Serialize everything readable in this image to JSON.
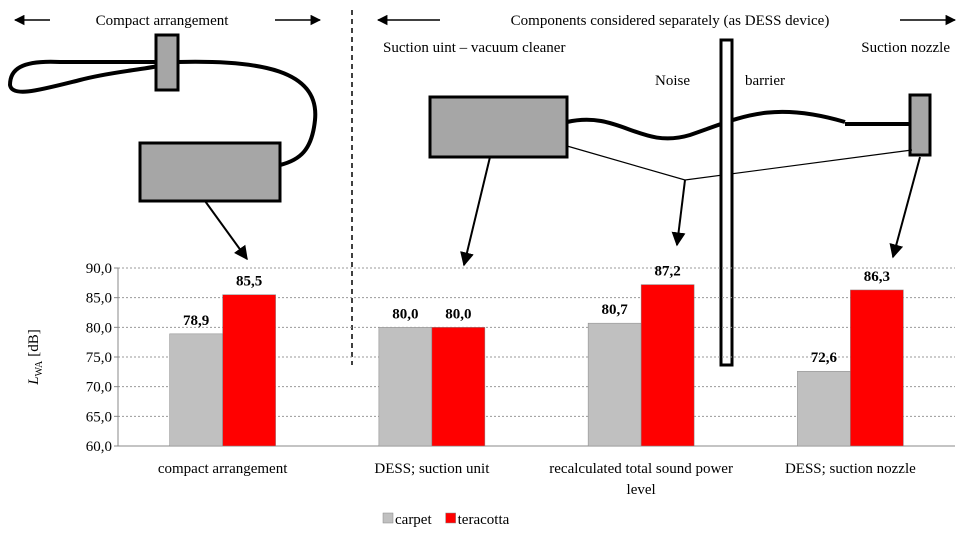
{
  "chart_data": {
    "type": "bar",
    "annotations": {
      "compact": "Compact arrangement",
      "separate": "Components considered separately (as DESS device)",
      "suction_unit": "Suction uint – vacuum cleaner",
      "suction_nozzle": "Suction nozzle",
      "noise": "Noise",
      "barrier": "barrier"
    },
    "y_label": {
      "symbol": "L",
      "subscript": "WA",
      "unit": "[dB]"
    },
    "categories": [
      "compact arrangement",
      "DESS; suction unit",
      "recalculated total sound power level",
      "DESS; suction nozzle"
    ],
    "series": [
      {
        "name": "carpet",
        "color": "#c0c0c0",
        "values": [
          78.9,
          80.0,
          80.7,
          72.6
        ],
        "value_labels": [
          "78,9",
          "80,0",
          "80,7",
          "72,6"
        ]
      },
      {
        "name": "teracotta",
        "color": "#ff0000",
        "values": [
          85.5,
          80.0,
          87.2,
          86.3
        ],
        "value_labels": [
          "85,5",
          "80,0",
          "87,2",
          "86,3"
        ]
      }
    ],
    "ylim": [
      60,
      90
    ],
    "yticks": [
      {
        "value": 60,
        "label": "60,0"
      },
      {
        "value": 65,
        "label": "65,0"
      },
      {
        "value": 70,
        "label": "70,0"
      },
      {
        "value": 75,
        "label": "75,0"
      },
      {
        "value": 80,
        "label": "80,0"
      },
      {
        "value": 85,
        "label": "85,0"
      },
      {
        "value": 90,
        "label": "90,0"
      }
    ],
    "grid": true
  }
}
